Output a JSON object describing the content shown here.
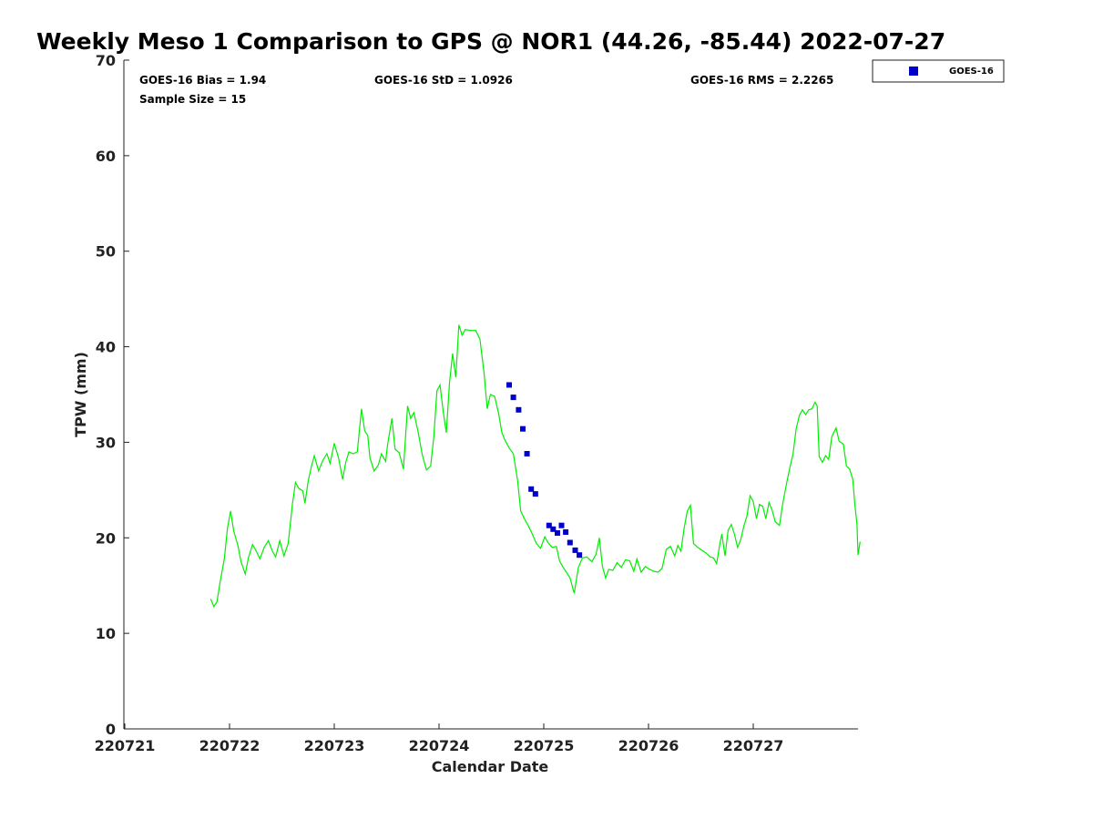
{
  "chart_data": {
    "type": "scatter",
    "title": "Weekly Meso 1 Comparison to GPS @ NOR1 (44.26, -85.44) 2022-07-27",
    "xlabel": "Calendar Date",
    "ylabel": "TPW (mm)",
    "xlim": [
      0,
      7
    ],
    "ylim": [
      0,
      70
    ],
    "x_ticks": [
      0,
      1,
      2,
      3,
      4,
      5,
      6
    ],
    "x_tick_labels": [
      "220721",
      "220722",
      "220723",
      "220724",
      "220725",
      "220726",
      "220727"
    ],
    "y_ticks": [
      0,
      10,
      20,
      30,
      40,
      50,
      60,
      70
    ],
    "grid": false,
    "legend_position": "outside-top-right",
    "stats": {
      "bias": "GOES-16 Bias = 1.94",
      "std": "GOES-16 StD = 1.0926",
      "rms": "GOES-16 RMS = 2.2265",
      "sample": "Sample Size = 15"
    },
    "series": [
      {
        "name": "GOES-16",
        "kind": "scatter",
        "color": "#0000cc",
        "points": [
          [
            3.67,
            36.0
          ],
          [
            3.71,
            34.7
          ],
          [
            3.76,
            33.4
          ],
          [
            3.8,
            31.4
          ],
          [
            3.84,
            28.8
          ],
          [
            3.88,
            25.1
          ],
          [
            3.92,
            24.6
          ],
          [
            4.05,
            21.3
          ],
          [
            4.09,
            20.9
          ],
          [
            4.13,
            20.5
          ],
          [
            4.17,
            21.3
          ],
          [
            4.21,
            20.6
          ],
          [
            4.25,
            19.5
          ],
          [
            4.3,
            18.7
          ],
          [
            4.34,
            18.2
          ]
        ]
      },
      {
        "kind": "line",
        "color": "#00ee00",
        "points": [
          [
            0.82,
            13.6
          ],
          [
            0.85,
            12.8
          ],
          [
            0.88,
            13.3
          ],
          [
            0.91,
            15.4
          ],
          [
            0.95,
            17.8
          ],
          [
            0.98,
            21.0
          ],
          [
            1.01,
            22.8
          ],
          [
            1.04,
            20.7
          ],
          [
            1.08,
            19.2
          ],
          [
            1.11,
            17.5
          ],
          [
            1.15,
            16.2
          ],
          [
            1.18,
            17.9
          ],
          [
            1.22,
            19.3
          ],
          [
            1.25,
            18.7
          ],
          [
            1.29,
            17.8
          ],
          [
            1.33,
            19.0
          ],
          [
            1.37,
            19.7
          ],
          [
            1.41,
            18.6
          ],
          [
            1.44,
            18.0
          ],
          [
            1.48,
            19.7
          ],
          [
            1.52,
            18.1
          ],
          [
            1.56,
            19.4
          ],
          [
            1.6,
            23.5
          ],
          [
            1.63,
            25.8
          ],
          [
            1.66,
            25.2
          ],
          [
            1.7,
            24.9
          ],
          [
            1.72,
            23.6
          ],
          [
            1.75,
            25.9
          ],
          [
            1.78,
            27.4
          ],
          [
            1.81,
            28.6
          ],
          [
            1.85,
            27.0
          ],
          [
            1.89,
            28.1
          ],
          [
            1.93,
            28.8
          ],
          [
            1.96,
            27.8
          ],
          [
            2.0,
            29.9
          ],
          [
            2.04,
            28.4
          ],
          [
            2.08,
            26.1
          ],
          [
            2.11,
            27.9
          ],
          [
            2.14,
            29.0
          ],
          [
            2.18,
            28.8
          ],
          [
            2.22,
            29.0
          ],
          [
            2.26,
            33.5
          ],
          [
            2.29,
            31.2
          ],
          [
            2.32,
            30.7
          ],
          [
            2.34,
            28.4
          ],
          [
            2.38,
            27.0
          ],
          [
            2.42,
            27.6
          ],
          [
            2.45,
            28.8
          ],
          [
            2.49,
            28.0
          ],
          [
            2.51,
            29.8
          ],
          [
            2.55,
            32.5
          ],
          [
            2.58,
            29.3
          ],
          [
            2.62,
            28.9
          ],
          [
            2.66,
            27.2
          ],
          [
            2.7,
            33.8
          ],
          [
            2.73,
            32.5
          ],
          [
            2.76,
            33.1
          ],
          [
            2.8,
            31.1
          ],
          [
            2.84,
            28.7
          ],
          [
            2.88,
            27.1
          ],
          [
            2.92,
            27.5
          ],
          [
            2.95,
            30.6
          ],
          [
            2.98,
            35.4
          ],
          [
            3.01,
            36.0
          ],
          [
            3.04,
            33.2
          ],
          [
            3.07,
            31.0
          ],
          [
            3.1,
            36.2
          ],
          [
            3.13,
            39.3
          ],
          [
            3.16,
            36.8
          ],
          [
            3.19,
            42.3
          ],
          [
            3.22,
            41.2
          ],
          [
            3.25,
            41.8
          ],
          [
            3.3,
            41.7
          ],
          [
            3.35,
            41.7
          ],
          [
            3.39,
            40.8
          ],
          [
            3.43,
            37.2
          ],
          [
            3.46,
            33.5
          ],
          [
            3.49,
            35.0
          ],
          [
            3.53,
            34.8
          ],
          [
            3.57,
            33.0
          ],
          [
            3.6,
            31.0
          ],
          [
            3.63,
            30.2
          ],
          [
            3.67,
            29.4
          ],
          [
            3.71,
            28.8
          ],
          [
            3.75,
            26.0
          ],
          [
            3.78,
            22.8
          ],
          [
            3.81,
            22.1
          ],
          [
            3.85,
            21.3
          ],
          [
            3.89,
            20.4
          ],
          [
            3.93,
            19.4
          ],
          [
            3.97,
            18.9
          ],
          [
            4.01,
            20.1
          ],
          [
            4.04,
            19.5
          ],
          [
            4.08,
            19.0
          ],
          [
            4.12,
            19.1
          ],
          [
            4.15,
            17.6
          ],
          [
            4.18,
            17.0
          ],
          [
            4.21,
            16.5
          ],
          [
            4.25,
            15.8
          ],
          [
            4.29,
            14.2
          ],
          [
            4.33,
            16.9
          ],
          [
            4.37,
            17.9
          ],
          [
            4.41,
            18.0
          ],
          [
            4.46,
            17.5
          ],
          [
            4.5,
            18.3
          ],
          [
            4.53,
            20.0
          ],
          [
            4.56,
            17.0
          ],
          [
            4.59,
            15.8
          ],
          [
            4.62,
            16.7
          ],
          [
            4.66,
            16.6
          ],
          [
            4.7,
            17.4
          ],
          [
            4.74,
            16.9
          ],
          [
            4.78,
            17.7
          ],
          [
            4.82,
            17.6
          ],
          [
            4.86,
            16.5
          ],
          [
            4.89,
            17.8
          ],
          [
            4.93,
            16.4
          ],
          [
            4.97,
            17.0
          ],
          [
            5.01,
            16.7
          ],
          [
            5.05,
            16.5
          ],
          [
            5.09,
            16.4
          ],
          [
            5.13,
            16.8
          ],
          [
            5.17,
            18.8
          ],
          [
            5.21,
            19.1
          ],
          [
            5.25,
            18.1
          ],
          [
            5.28,
            19.2
          ],
          [
            5.31,
            18.6
          ],
          [
            5.34,
            21.0
          ],
          [
            5.37,
            22.8
          ],
          [
            5.4,
            23.4
          ],
          [
            5.43,
            19.4
          ],
          [
            5.47,
            19.0
          ],
          [
            5.51,
            18.7
          ],
          [
            5.55,
            18.4
          ],
          [
            5.59,
            18.0
          ],
          [
            5.62,
            17.9
          ],
          [
            5.65,
            17.3
          ],
          [
            5.68,
            19.3
          ],
          [
            5.7,
            20.4
          ],
          [
            5.73,
            18.1
          ],
          [
            5.76,
            20.8
          ],
          [
            5.79,
            21.4
          ],
          [
            5.82,
            20.4
          ],
          [
            5.85,
            19.0
          ],
          [
            5.88,
            19.8
          ],
          [
            5.91,
            21.2
          ],
          [
            5.94,
            22.3
          ],
          [
            5.97,
            24.4
          ],
          [
            6.0,
            23.8
          ],
          [
            6.03,
            22.0
          ],
          [
            6.06,
            23.5
          ],
          [
            6.09,
            23.3
          ],
          [
            6.12,
            22.0
          ],
          [
            6.15,
            23.7
          ],
          [
            6.18,
            22.9
          ],
          [
            6.21,
            21.7
          ],
          [
            6.25,
            21.3
          ],
          [
            6.28,
            23.5
          ],
          [
            6.32,
            25.8
          ],
          [
            6.35,
            27.4
          ],
          [
            6.38,
            28.8
          ],
          [
            6.41,
            31.4
          ],
          [
            6.44,
            32.8
          ],
          [
            6.47,
            33.4
          ],
          [
            6.5,
            32.9
          ],
          [
            6.53,
            33.4
          ],
          [
            6.56,
            33.5
          ],
          [
            6.59,
            34.2
          ],
          [
            6.61,
            33.8
          ],
          [
            6.63,
            28.5
          ],
          [
            6.66,
            27.9
          ],
          [
            6.69,
            28.6
          ],
          [
            6.72,
            28.2
          ],
          [
            6.75,
            30.6
          ],
          [
            6.79,
            31.5
          ],
          [
            6.82,
            30.1
          ],
          [
            6.86,
            29.8
          ],
          [
            6.89,
            27.5
          ],
          [
            6.92,
            27.2
          ],
          [
            6.95,
            26.1
          ],
          [
            6.97,
            23.5
          ],
          [
            6.99,
            21.4
          ],
          [
            7.0,
            18.2
          ],
          [
            7.02,
            19.6
          ]
        ]
      }
    ]
  }
}
